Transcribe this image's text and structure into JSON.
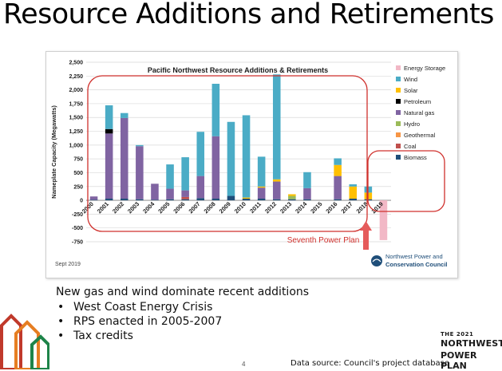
{
  "slide": {
    "title": "Resource Additions and Retirements",
    "lead_text": "New gas and wind dominate recent additions",
    "bullets": [
      "West Coast Energy Crisis",
      "RPS enacted in 2005-2007",
      "Tax credits"
    ],
    "page_number": "4",
    "source_note": "Data source: Council's project database",
    "brand": {
      "line1": "THE 2021",
      "line2": "NORTHWEST",
      "line3": "POWER PLAN"
    }
  },
  "chart_data": {
    "type": "bar",
    "stacked": true,
    "title": "Pacific Northwest Resource Additions & Retirements",
    "ylabel": "Nameplate Capacity (Megawatts)",
    "xlabel": "",
    "ylim": [
      -750,
      2500
    ],
    "ytick_step": 250,
    "grid": true,
    "legend_position": "right",
    "categories": [
      "2000",
      "2001",
      "2002",
      "2003",
      "2004",
      "2005",
      "2006",
      "2007",
      "2008",
      "2009",
      "2010",
      "2011",
      "2012",
      "2013",
      "2014",
      "2015",
      "2016",
      "2017",
      "2018",
      "2019"
    ],
    "series": [
      {
        "name": "Energy Storage",
        "color": "#f2b8c6",
        "values": [
          0,
          0,
          0,
          0,
          0,
          0,
          0,
          0,
          0,
          0,
          0,
          0,
          0,
          0,
          0,
          0,
          0,
          0,
          0,
          -720
        ]
      },
      {
        "name": "Wind",
        "color": "#4bacc6",
        "values": [
          0,
          430,
          90,
          20,
          0,
          440,
          600,
          800,
          950,
          1340,
          1490,
          540,
          1900,
          0,
          290,
          0,
          120,
          40,
          110,
          0
        ]
      },
      {
        "name": "Solar",
        "color": "#ffc000",
        "values": [
          0,
          0,
          0,
          0,
          0,
          0,
          0,
          0,
          0,
          0,
          20,
          20,
          40,
          30,
          0,
          0,
          200,
          220,
          120,
          0
        ]
      },
      {
        "name": "Petroleum",
        "color": "#000000",
        "values": [
          0,
          80,
          0,
          0,
          0,
          0,
          0,
          0,
          0,
          0,
          0,
          0,
          0,
          0,
          0,
          0,
          0,
          0,
          0,
          0
        ]
      },
      {
        "name": "Natural gas",
        "color": "#8064a2",
        "values": [
          60,
          1180,
          1460,
          960,
          290,
          190,
          120,
          400,
          1130,
          0,
          0,
          200,
          320,
          0,
          200,
          0,
          420,
          0,
          0,
          0
        ]
      },
      {
        "name": "Hydro",
        "color": "#9bbb59",
        "values": [
          0,
          0,
          0,
          0,
          0,
          0,
          0,
          0,
          0,
          0,
          0,
          0,
          0,
          60,
          0,
          0,
          0,
          0,
          0,
          0
        ]
      },
      {
        "name": "Geothermal",
        "color": "#f79646",
        "values": [
          0,
          0,
          0,
          0,
          0,
          0,
          0,
          0,
          0,
          0,
          0,
          0,
          0,
          0,
          0,
          0,
          0,
          0,
          0,
          0
        ]
      },
      {
        "name": "Coal",
        "color": "#c0504d",
        "values": [
          0,
          0,
          0,
          0,
          0,
          0,
          40,
          0,
          0,
          0,
          0,
          0,
          0,
          0,
          0,
          0,
          0,
          0,
          0,
          0
        ]
      },
      {
        "name": "Biomass",
        "color": "#1f4e79",
        "values": [
          10,
          30,
          30,
          20,
          10,
          20,
          20,
          40,
          30,
          80,
          30,
          30,
          20,
          20,
          20,
          0,
          20,
          30,
          20,
          0
        ]
      }
    ],
    "annotations": {
      "plan_label": "Seventh Power Plan",
      "date_note": "Sept 2019",
      "logo_line1": "Northwest Power and",
      "logo_line2": "Conservation Council"
    }
  }
}
